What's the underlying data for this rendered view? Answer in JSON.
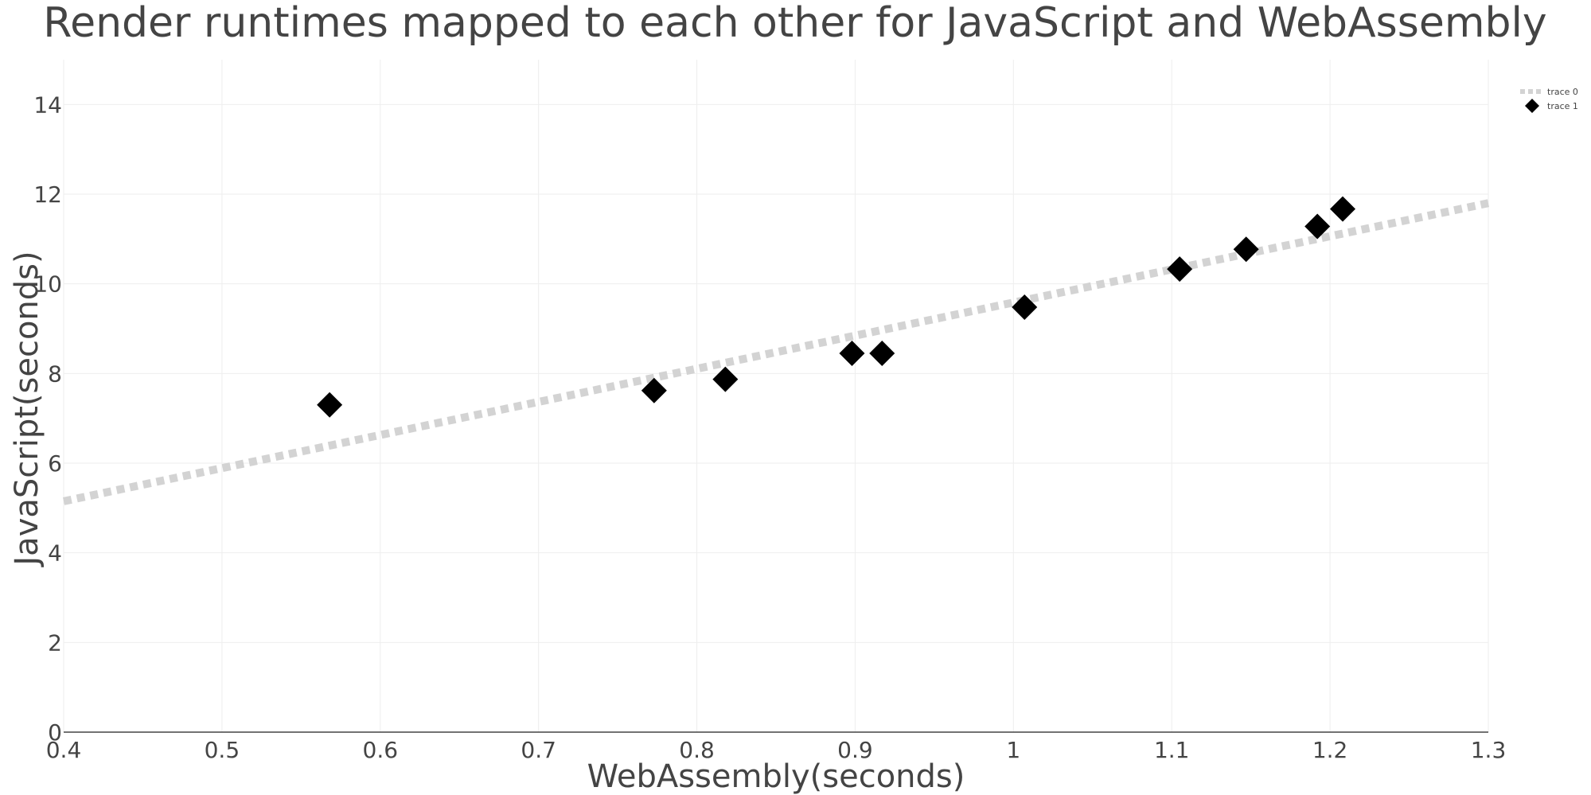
{
  "chart_data": {
    "type": "scatter",
    "title": "Render runtimes mapped to each other for JavaScript and WebAssembly",
    "xlabel": "WebAssembly(seconds)",
    "ylabel": "JavaScript(seconds)",
    "xlim": [
      0.4,
      1.3
    ],
    "ylim": [
      0,
      15
    ],
    "x_ticks": [
      "0.4",
      "0.5",
      "0.6",
      "0.7",
      "0.8",
      "0.9",
      "1",
      "1.1",
      "1.2",
      "1.3"
    ],
    "y_ticks": [
      "0",
      "2",
      "4",
      "6",
      "8",
      "10",
      "12",
      "14"
    ],
    "grid": true,
    "legend_position": "top-right",
    "series": [
      {
        "name": "trace 0",
        "mode": "lines",
        "line_style": "dotted",
        "color": "#d3d3d3",
        "x": [
          0.4,
          1.3
        ],
        "y": [
          5.15,
          11.8
        ]
      },
      {
        "name": "trace 1",
        "mode": "markers",
        "marker": "diamond",
        "color": "#000000",
        "x": [
          0.568,
          0.773,
          0.818,
          0.898,
          0.917,
          1.007,
          1.105,
          1.147,
          1.192,
          1.208
        ],
        "y": [
          7.3,
          7.62,
          7.87,
          8.45,
          8.45,
          9.48,
          10.33,
          10.77,
          11.28,
          11.67
        ]
      }
    ]
  }
}
